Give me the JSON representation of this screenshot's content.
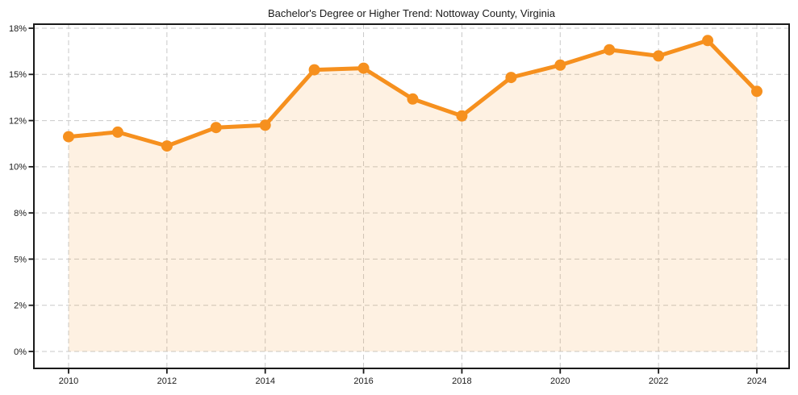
{
  "title": "Bachelor's Degree or Higher Trend: Nottoway County, Virginia",
  "colors": {
    "line": "#f6901e",
    "marker": "#f6901e",
    "area_fill": "rgba(246,144,30,0.13)",
    "grid": "#c9c9c9",
    "axis": "#1a1a1a",
    "text": "#1a1a1a",
    "background": "#ffffff"
  },
  "chart_data": {
    "type": "line",
    "title": "Bachelor's Degree or Higher Trend: Nottoway County, Virginia",
    "x": [
      2010,
      2011,
      2012,
      2013,
      2014,
      2015,
      2016,
      2017,
      2018,
      2019,
      2020,
      2021,
      2022,
      2023,
      2024
    ],
    "values": [
      11.3,
      11.5,
      10.9,
      11.7,
      11.8,
      15.3,
      15.4,
      13.4,
      12.3,
      14.8,
      15.6,
      16.6,
      16.2,
      17.2,
      13.9
    ],
    "unit": "%",
    "x_tick_labels": [
      "2010",
      "2012",
      "2014",
      "2016",
      "2018",
      "2020",
      "2022",
      "2024"
    ],
    "x_tick_years": [
      2010,
      2012,
      2014,
      2016,
      2018,
      2020,
      2022,
      2024
    ],
    "y_tick_labels": [
      "18%",
      "15%",
      "12%",
      "10%",
      "8%",
      "5%",
      "2%",
      "0%"
    ],
    "y_tick_values": [
      18,
      15,
      12,
      10,
      8,
      5,
      2,
      0
    ],
    "xlabel": "",
    "ylabel": "",
    "grid": true,
    "grid_style": "dashed",
    "legend": false,
    "area_fill": true,
    "markers": true,
    "y_axis_ticks_evenly_spaced": true
  }
}
